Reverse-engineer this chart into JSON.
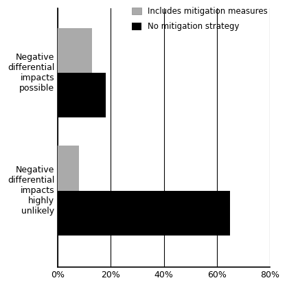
{
  "categories": [
    "Negative\ndifferential\nimpacts\npossible",
    "Negative\ndifferential\nimpacts\nhighly\nunlikely"
  ],
  "gray_values": [
    13,
    8
  ],
  "black_values": [
    18,
    65
  ],
  "gray_color": "#aaaaaa",
  "black_color": "#000000",
  "legend_labels": [
    "Includes mitigation measures",
    "No mitigation strategy"
  ],
  "xlim": [
    0,
    80
  ],
  "xticks": [
    0,
    20,
    40,
    60,
    80
  ],
  "xticklabels": [
    "0%",
    "20%",
    "40%",
    "60%",
    "80%"
  ],
  "bar_height": 0.38,
  "background_color": "#ffffff",
  "grid_color": "#000000",
  "axis_linewidth": 1.2,
  "figsize": [
    4.18,
    4.18
  ],
  "dpi": 100
}
